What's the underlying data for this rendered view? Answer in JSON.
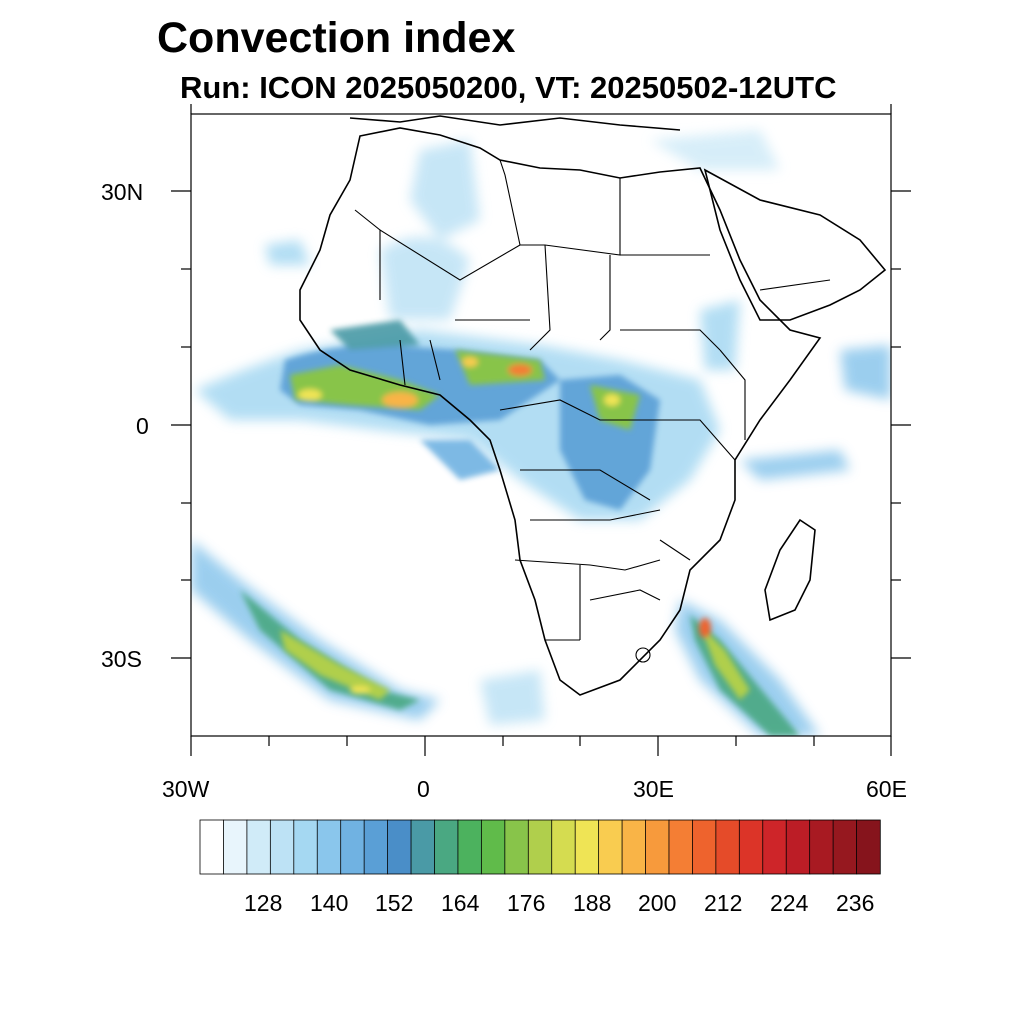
{
  "title": "Convection index",
  "subtitle": "Run: ICON 2025050200,  VT: 20250502-12UTC",
  "axes": {
    "lat_labels": [
      "30N",
      "0",
      "30S"
    ],
    "lon_labels": [
      "30W",
      "0",
      "30E",
      "60E"
    ],
    "lon_range": [
      -30,
      60
    ],
    "lat_range": [
      -40,
      40
    ]
  },
  "colorbar": {
    "labels": [
      "128",
      "140",
      "152",
      "164",
      "176",
      "188",
      "200",
      "212",
      "224",
      "236"
    ],
    "colors": [
      "#ffffff",
      "#e8f5fc",
      "#d0ebf8",
      "#bde2f5",
      "#a5d8f2",
      "#8ac6ec",
      "#70b2e2",
      "#5a9fd6",
      "#4a8ec8",
      "#4a9aa6",
      "#4aa882",
      "#4cb25e",
      "#60bb4a",
      "#88c44a",
      "#b0cf4c",
      "#d5dc50",
      "#efe455",
      "#f9cc50",
      "#f9b447",
      "#f79a3c",
      "#f47e34",
      "#ee632d",
      "#e54b29",
      "#dc3428",
      "#ce2529",
      "#bc1d26",
      "#a81a22",
      "#96181f",
      "#86141c"
    ]
  },
  "map_colors": {
    "land": "#ffffff",
    "ocean": "#ffffff",
    "border": "#000000"
  }
}
